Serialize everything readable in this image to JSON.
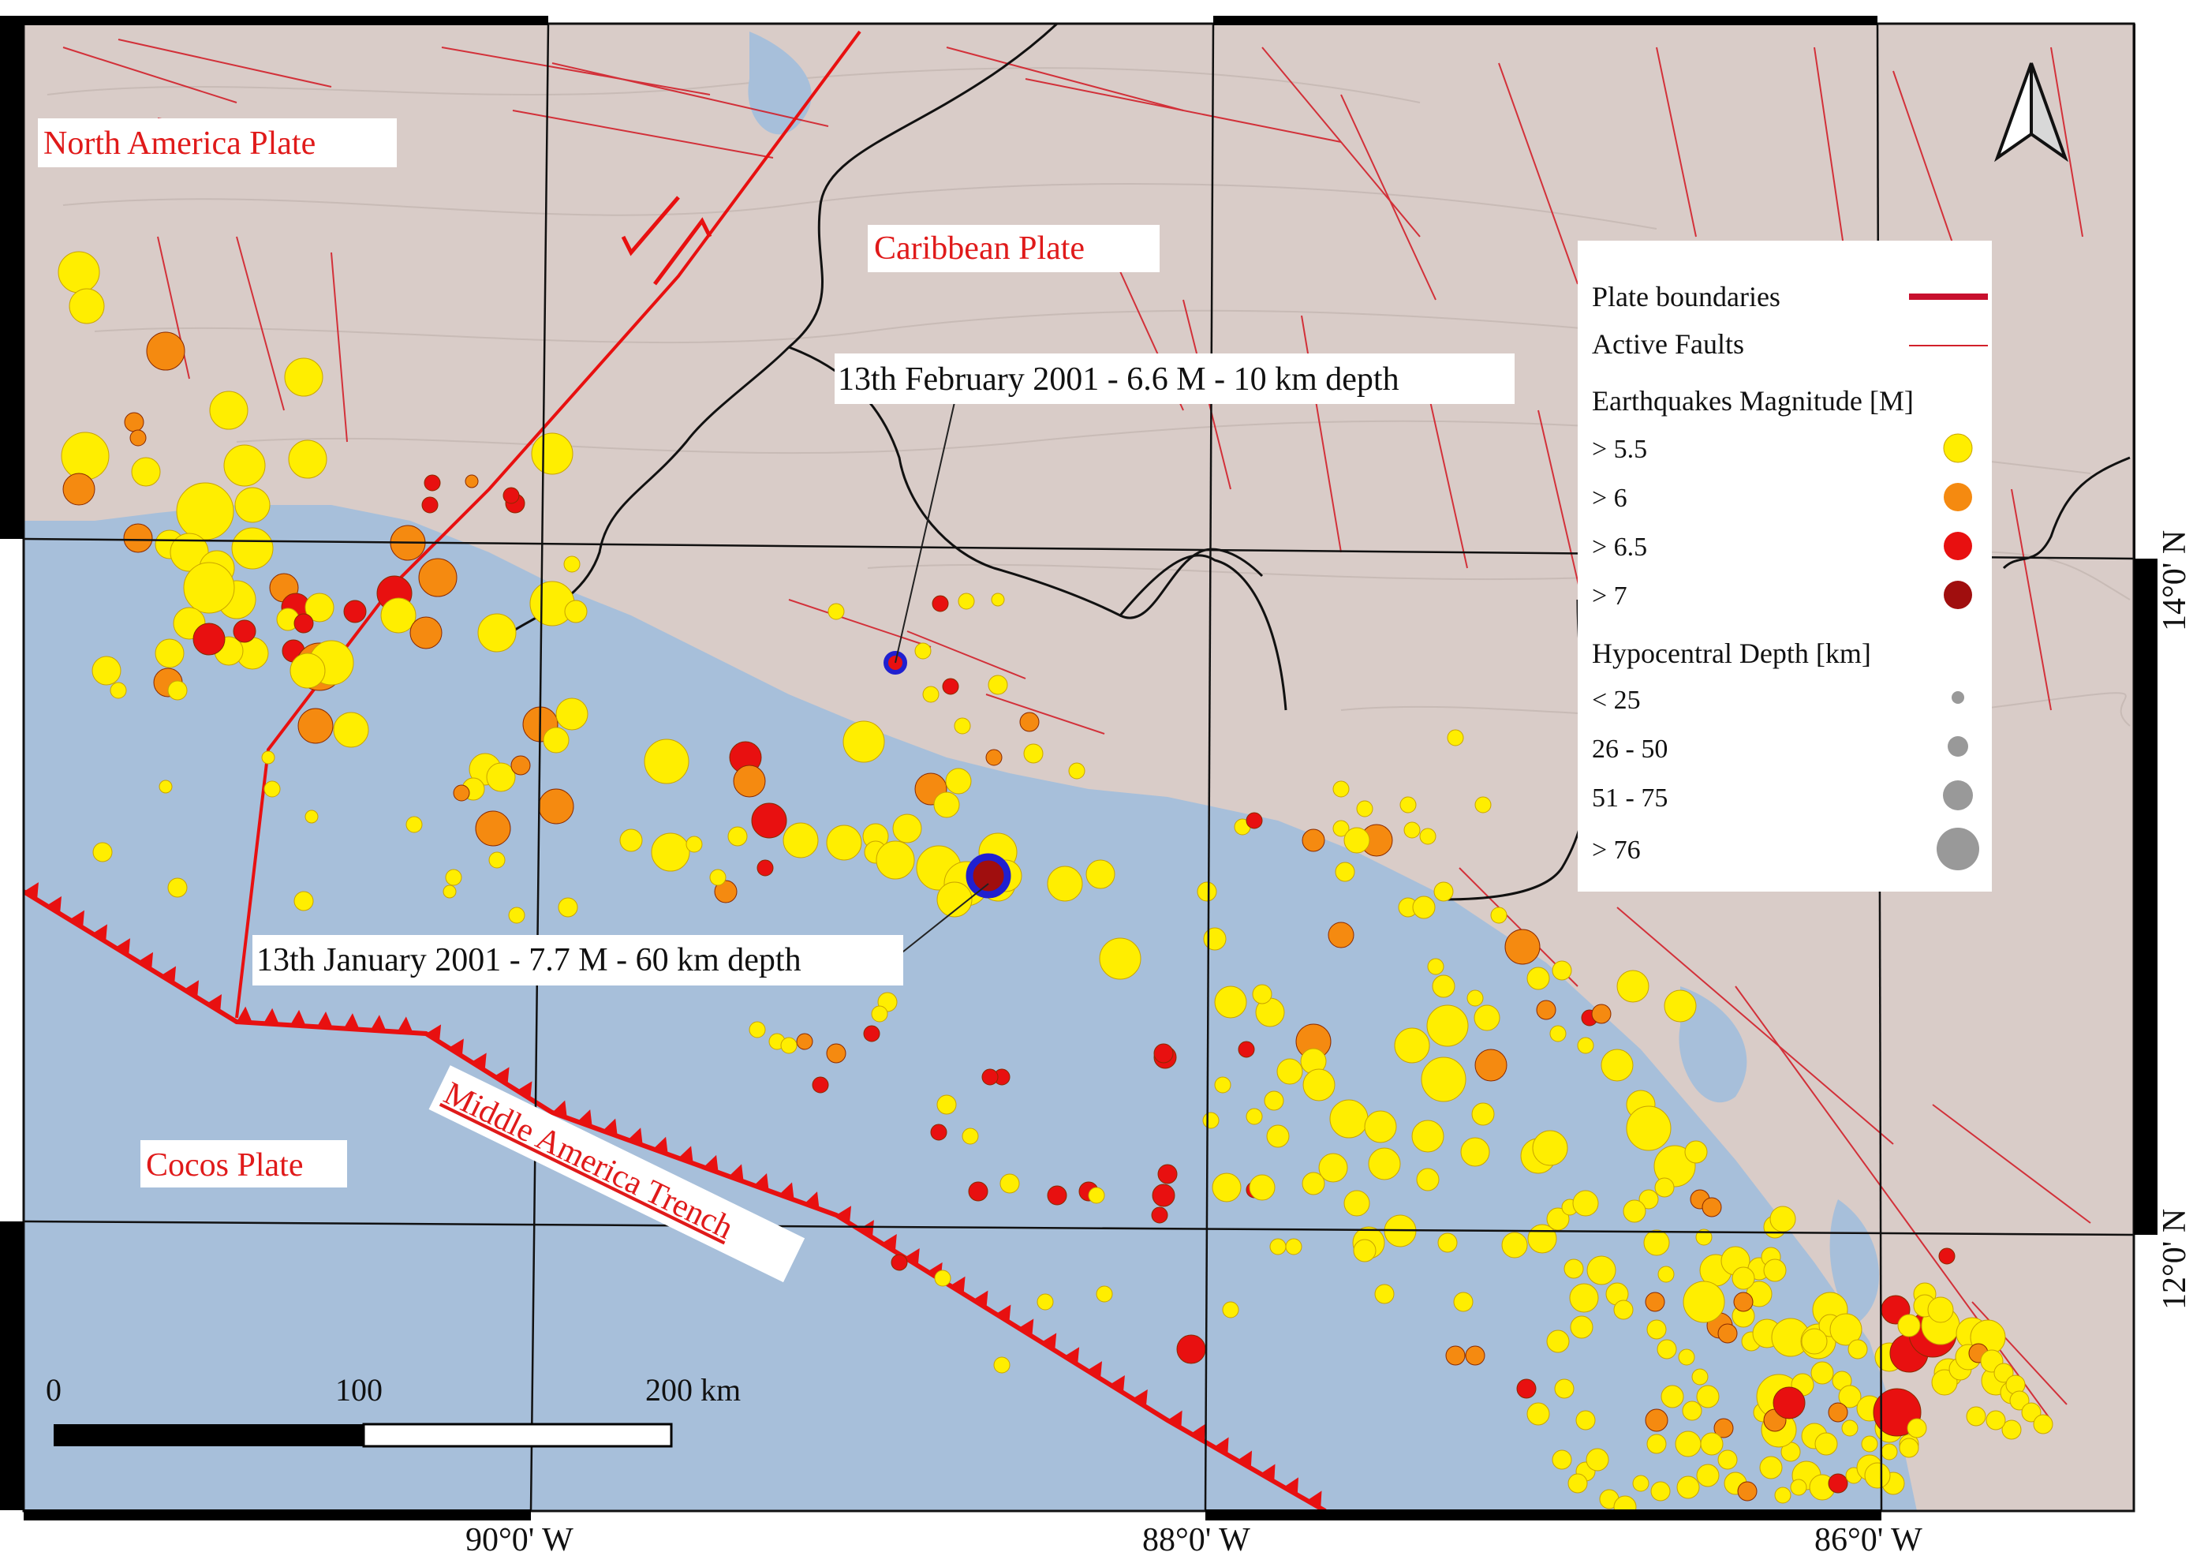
{
  "plates": {
    "north_america": "North America Plate",
    "caribbean": "Caribbean Plate",
    "cocos": "Cocos Plate",
    "trench": "Middle America Trench"
  },
  "events": {
    "feb2001": "13th February 2001 - 6.6 M - 10 km depth",
    "jan2001": "13th January 2001 - 7.7 M - 60 km depth"
  },
  "legend": {
    "plate_boundaries": "Plate boundaries",
    "active_faults": "Active Faults",
    "magnitude_title": "Earthquakes Magnitude [M]",
    "magnitudes": [
      {
        "label": "> 5.5",
        "color": "#ffee00"
      },
      {
        "label": "> 6",
        "color": "#f58a10"
      },
      {
        "label": "> 6.5",
        "color": "#e81010"
      },
      {
        "label": "> 7",
        "color": "#a00e0e"
      }
    ],
    "depth_title": "Hypocentral Depth [km]",
    "depths": [
      {
        "label": "< 25"
      },
      {
        "label": "26 - 50"
      },
      {
        "label": "51 - 75"
      },
      {
        "label": "> 76"
      }
    ]
  },
  "axes": {
    "lon_labels": [
      "90°0' W",
      "88°0' W",
      "86°0' W"
    ],
    "lat_labels": [
      "14°0' N",
      "12°0' N"
    ]
  },
  "scale_bar": {
    "labels": [
      "0",
      "100",
      "200 km"
    ]
  },
  "colors": {
    "sea": "#a7bfda",
    "land": "#d9ccc8",
    "fault": "#d2202a",
    "border": "#111111"
  }
}
